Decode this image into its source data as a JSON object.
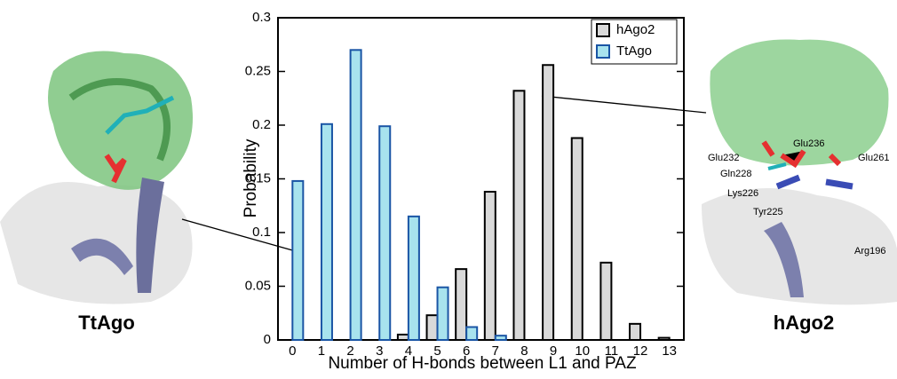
{
  "chart_data": {
    "type": "bar",
    "xlabel": "Number of H-bonds between L1 and PAZ",
    "ylabel": "Probability",
    "categories": [
      "0",
      "1",
      "2",
      "3",
      "4",
      "5",
      "6",
      "7",
      "8",
      "9",
      "10",
      "11",
      "12",
      "13"
    ],
    "series": [
      {
        "name": "hAgo2",
        "color": "#d9d9d9",
        "edgecolor": "#000000",
        "values": [
          0,
          0,
          0,
          0,
          0.005,
          0.023,
          0.066,
          0.138,
          0.232,
          0.256,
          0.188,
          0.072,
          0.015,
          0.002
        ]
      },
      {
        "name": "TtAgo",
        "color": "#a8e3ee",
        "edgecolor": "#1a55a5",
        "values": [
          0.148,
          0.201,
          0.27,
          0.199,
          0.115,
          0.049,
          0.012,
          0.004,
          0,
          0,
          0,
          0,
          0,
          0
        ]
      }
    ],
    "ylim": [
      0,
      0.3
    ],
    "yticks": [
      0,
      0.05,
      0.1,
      0.15,
      0.2,
      0.25,
      0.3
    ],
    "legend": "upper right",
    "annotations": [
      "TtAgo",
      "hAgo2",
      "Glu236",
      "Glu232",
      "Glu261",
      "Gln228",
      "Lys226",
      "Tyr225",
      "Arg196"
    ]
  }
}
